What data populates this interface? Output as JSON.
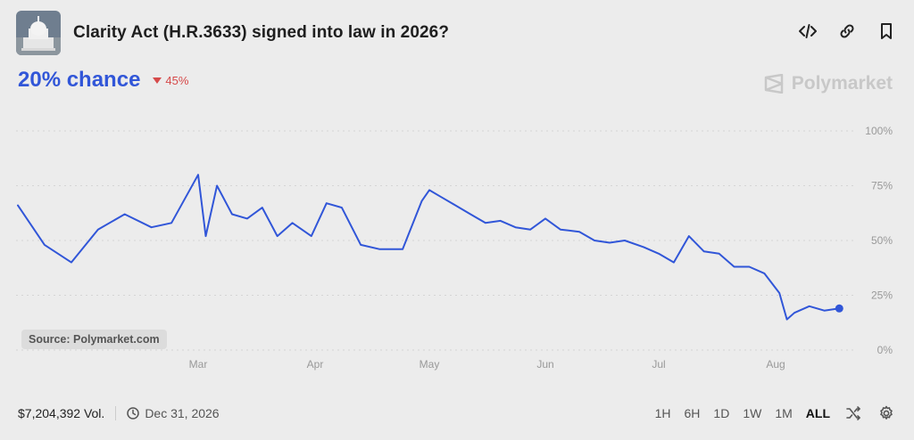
{
  "header": {
    "title": "Clarity Act (H.R.3633) signed into law in 2026?",
    "icons": [
      "code-embed-icon",
      "link-icon",
      "bookmark-icon"
    ]
  },
  "stats": {
    "chance": "20% chance",
    "change": "45%",
    "change_direction": "down",
    "change_color": "#d64a4a"
  },
  "brand": {
    "name": "Polymarket"
  },
  "source_badge": "Source: Polymarket.com",
  "footer": {
    "volume": "$7,204,392 Vol.",
    "date": "Dec 31, 2026",
    "ranges": [
      "1H",
      "6H",
      "1D",
      "1W",
      "1M",
      "ALL"
    ],
    "active_range": "ALL"
  },
  "colors": {
    "line": "#3156d8",
    "accent": "#3156d8",
    "background": "#ececec",
    "grid": "#d5d5d5"
  },
  "chart_data": {
    "type": "line",
    "series": [
      {
        "x": [
          "Feb 1",
          "Feb 5",
          "Feb 9",
          "Feb 13",
          "Feb 17",
          "Feb 21",
          "Feb 24",
          "Feb 28",
          "Mar 3",
          "Mar 6",
          "Mar 10",
          "Mar 14",
          "Mar 18",
          "Mar 22",
          "Mar 26",
          "Mar 31",
          "Apr 4",
          "Apr 8",
          "Apr 13",
          "Apr 18",
          "Apr 24",
          "Apr 29",
          "May 1",
          "May 4",
          "May 8",
          "May 12",
          "May 16",
          "May 20",
          "May 24",
          "May 28",
          "Jun 1",
          "Jun 5",
          "Jun 10",
          "Jun 14",
          "Jun 18",
          "Jun 22",
          "Jun 27",
          "Jul 1",
          "Jul 5",
          "Jul 9",
          "Jul 13",
          "Jul 17",
          "Jul 21",
          "Jul 25",
          "Jul 29",
          "Aug 2",
          "Aug 4",
          "Aug 6",
          "Aug 10",
          "Aug 14",
          "Aug 18"
        ],
        "values": [
          66,
          48,
          40,
          55,
          62,
          56,
          58,
          80,
          52,
          75,
          62,
          60,
          65,
          52,
          58,
          52,
          67,
          65,
          48,
          46,
          46,
          68,
          73,
          70,
          66,
          62,
          58,
          59,
          56,
          55,
          60,
          55,
          54,
          50,
          49,
          50,
          47,
          44,
          40,
          52,
          45,
          44,
          38,
          38,
          35,
          26,
          14,
          17,
          20,
          18,
          19
        ]
      }
    ],
    "xticks": [
      "Mar",
      "Apr",
      "May",
      "Jun",
      "Jul",
      "Aug"
    ],
    "yticks": [
      "0%",
      "25%",
      "50%",
      "75%",
      "100%"
    ],
    "ylim": [
      0,
      100
    ],
    "grid": true,
    "last_marker": true
  }
}
